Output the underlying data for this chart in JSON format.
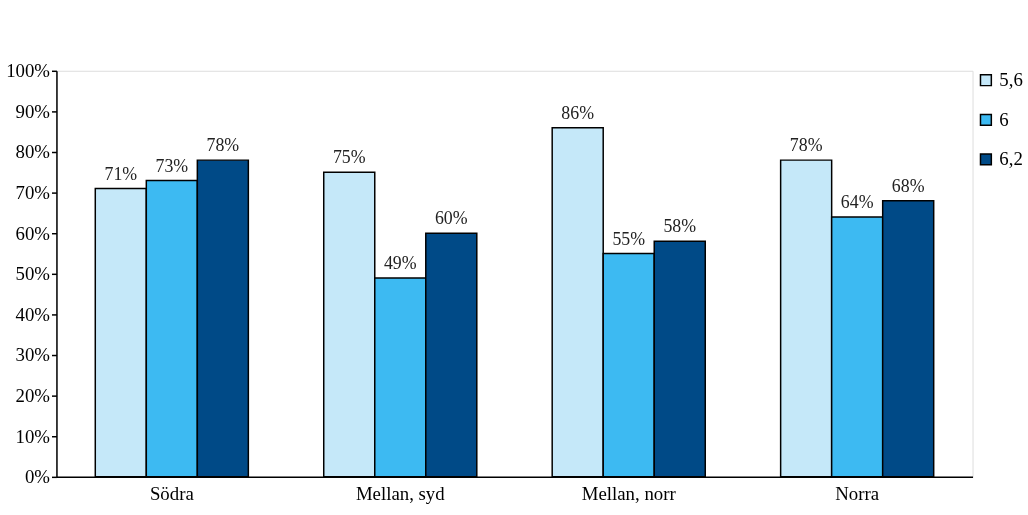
{
  "chart_data": {
    "type": "bar",
    "categories": [
      "Södra",
      "Mellan, syd",
      "Mellan, norr",
      "Norra"
    ],
    "series": [
      {
        "name": "5,6",
        "color": "#c5e8f9",
        "values": [
          71,
          75,
          86,
          78
        ],
        "value_labels": [
          "71%",
          "75%",
          "86%",
          "78%"
        ]
      },
      {
        "name": "6",
        "color": "#3dbaf2",
        "values": [
          73,
          49,
          55,
          64
        ],
        "value_labels": [
          "73%",
          "49%",
          "55%",
          "64%"
        ]
      },
      {
        "name": "6,2",
        "color": "#004a87",
        "values": [
          78,
          60,
          58,
          68
        ],
        "value_labels": [
          "78%",
          "60%",
          "58%",
          "68%"
        ]
      }
    ],
    "ylim": [
      0,
      100
    ],
    "yticks": [
      {
        "value": 0,
        "label": "0%"
      },
      {
        "value": 10,
        "label": "10%"
      },
      {
        "value": 20,
        "label": "20%"
      },
      {
        "value": 30,
        "label": "30%"
      },
      {
        "value": 40,
        "label": "40%"
      },
      {
        "value": 50,
        "label": "50%"
      },
      {
        "value": 60,
        "label": "60%"
      },
      {
        "value": 70,
        "label": "70%"
      },
      {
        "value": 80,
        "label": "80%"
      },
      {
        "value": 90,
        "label": "90%"
      },
      {
        "value": 100,
        "label": "100%"
      }
    ],
    "grid": false,
    "legend": "top right"
  }
}
